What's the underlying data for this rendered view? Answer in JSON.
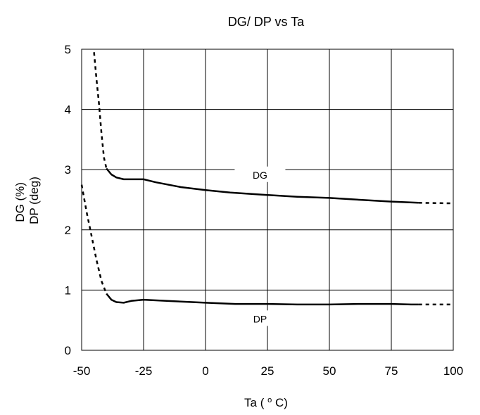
{
  "chart_data": {
    "type": "line",
    "title": "DG/ DP vs Ta",
    "xlabel": {
      "prefix": "Ta (",
      "superscript": "o",
      "suffix": "C)"
    },
    "ylabel": {
      "line1": "DG (%)",
      "line2": "DP (deg)"
    },
    "xlim": [
      -50,
      100
    ],
    "ylim": [
      0,
      5
    ],
    "x_ticks": [
      -50,
      -25,
      0,
      25,
      50,
      75,
      100
    ],
    "x_tick_labels": [
      "-50",
      "-25",
      "0",
      "25",
      "50",
      "75",
      "100"
    ],
    "y_ticks": [
      0,
      1,
      2,
      3,
      4,
      5
    ],
    "y_tick_labels": [
      "0",
      "1",
      "2",
      "3",
      "4",
      "5"
    ],
    "grid": true,
    "series": [
      {
        "name": "DG",
        "color": "#000000",
        "segments": [
          {
            "style": "dashed",
            "points": [
              [
                -45,
                4.95
              ],
              [
                -44,
                4.5
              ],
              [
                -43,
                4.1
              ],
              [
                -42,
                3.6
              ],
              [
                -41,
                3.2
              ],
              [
                -40,
                3.02
              ]
            ]
          },
          {
            "style": "solid",
            "points": [
              [
                -40,
                3.02
              ],
              [
                -38,
                2.92
              ],
              [
                -36,
                2.87
              ],
              [
                -33,
                2.84
              ],
              [
                -30,
                2.84
              ],
              [
                -25,
                2.84
              ],
              [
                -20,
                2.79
              ],
              [
                -10,
                2.71
              ],
              [
                0,
                2.66
              ],
              [
                10,
                2.62
              ],
              [
                25,
                2.58
              ],
              [
                37,
                2.55
              ],
              [
                50,
                2.53
              ],
              [
                62,
                2.5
              ],
              [
                75,
                2.47
              ],
              [
                86,
                2.45
              ]
            ]
          },
          {
            "style": "dashed",
            "points": [
              [
                86,
                2.45
              ],
              [
                100,
                2.44
              ]
            ]
          }
        ]
      },
      {
        "name": "DP",
        "color": "#000000",
        "segments": [
          {
            "style": "dashed",
            "points": [
              [
                -50,
                2.75
              ],
              [
                -48,
                2.3
              ],
              [
                -46,
                1.9
              ],
              [
                -44,
                1.5
              ],
              [
                -42,
                1.15
              ],
              [
                -40,
                0.94
              ]
            ]
          },
          {
            "style": "solid",
            "points": [
              [
                -40,
                0.94
              ],
              [
                -38,
                0.84
              ],
              [
                -36,
                0.8
              ],
              [
                -33,
                0.79
              ],
              [
                -30,
                0.82
              ],
              [
                -25,
                0.84
              ],
              [
                -20,
                0.83
              ],
              [
                -10,
                0.81
              ],
              [
                0,
                0.79
              ],
              [
                12,
                0.77
              ],
              [
                25,
                0.77
              ],
              [
                37,
                0.76
              ],
              [
                50,
                0.76
              ],
              [
                62,
                0.77
              ],
              [
                75,
                0.77
              ],
              [
                83,
                0.76
              ],
              [
                86,
                0.76
              ]
            ]
          },
          {
            "style": "dashed",
            "points": [
              [
                86,
                0.76
              ],
              [
                100,
                0.76
              ]
            ]
          }
        ]
      }
    ],
    "annotations": [
      {
        "label": "DG",
        "x": 22,
        "y": 2.9
      },
      {
        "label": "DP",
        "x": 22,
        "y": 0.51
      }
    ]
  }
}
